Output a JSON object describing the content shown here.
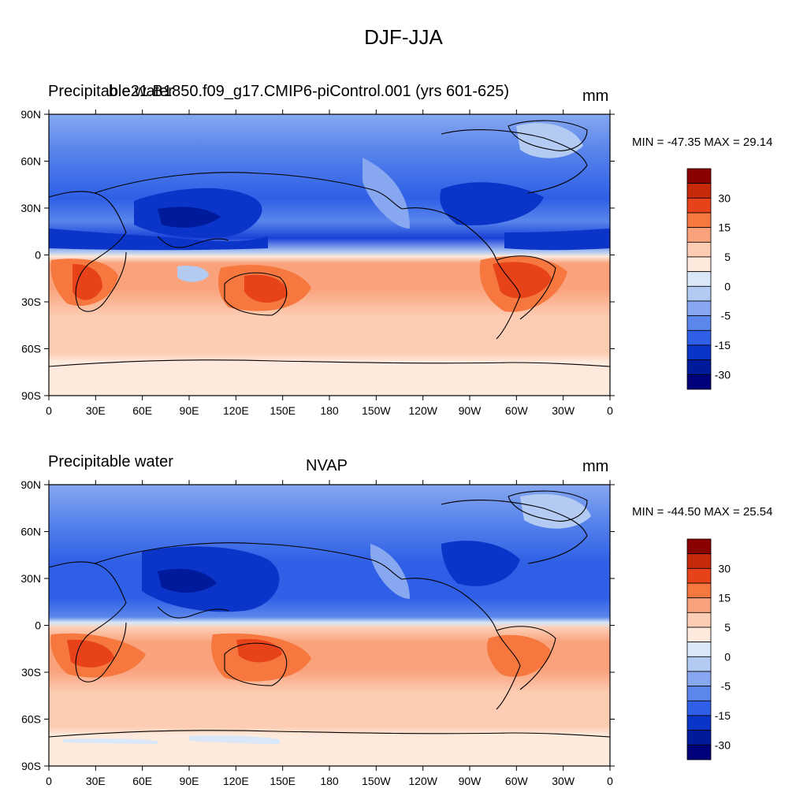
{
  "figure": {
    "title": "DJF-JJA"
  },
  "panels": [
    {
      "left_title": "Precipitable water",
      "center_title": "b.e21.B1850.f09_g17.CMIP6-piControl.001 (yrs 601-625)",
      "units": "mm",
      "stats": "MIN = -47.35 MAX =  29.14"
    },
    {
      "left_title": "Precipitable water",
      "center_title": "NVAP",
      "units": "mm",
      "stats": "MIN = -44.50 MAX =  25.54"
    }
  ],
  "axes": {
    "lat_ticks": [
      "90N",
      "60N",
      "30N",
      "0",
      "30S",
      "60S",
      "90S"
    ],
    "lon_ticks": [
      "0",
      "30E",
      "60E",
      "90E",
      "120E",
      "150E",
      "180",
      "150W",
      "120W",
      "90W",
      "60W",
      "30W",
      "0"
    ]
  },
  "colorbar": {
    "labels": [
      "30",
      "15",
      "5",
      "0",
      "-5",
      "-15",
      "-30"
    ],
    "colors": [
      "#8b0000",
      "#c62a08",
      "#e8421a",
      "#f6783f",
      "#f9a27c",
      "#fdcdb3",
      "#fdeadc",
      "#d9e7f8",
      "#b3cbf3",
      "#87a8f0",
      "#5b86ec",
      "#2e5fe6",
      "#0a35c8",
      "#001a9c",
      "#00007a"
    ]
  },
  "colors": {
    "ocean_tropics_south": "#fdcdb3",
    "blue_band": "#2e5fe6"
  }
}
